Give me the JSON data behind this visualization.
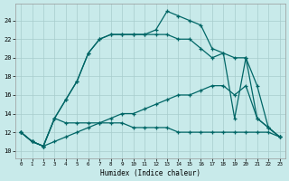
{
  "xlabel": "Humidex (Indice chaleur)",
  "bg_color": "#c8eaea",
  "grid_color": "#a8cccc",
  "line_color": "#006666",
  "xlim": [
    -0.5,
    23.5
  ],
  "ylim": [
    9.2,
    25.8
  ],
  "xticks": [
    0,
    1,
    2,
    3,
    4,
    5,
    6,
    7,
    8,
    9,
    10,
    11,
    12,
    13,
    14,
    15,
    16,
    17,
    18,
    19,
    20,
    21,
    22,
    23
  ],
  "yticks": [
    10,
    12,
    14,
    16,
    18,
    20,
    22,
    24
  ],
  "curve_top": {
    "x": [
      0,
      1,
      2,
      3,
      4,
      5,
      6,
      7,
      8,
      9,
      10,
      11,
      12,
      13,
      14,
      15,
      16,
      17,
      18,
      19,
      20,
      21,
      22,
      23
    ],
    "y": [
      12,
      11,
      10.5,
      13.5,
      15.5,
      17.5,
      20.5,
      22,
      22.5,
      22.5,
      22.5,
      22.5,
      23,
      25,
      24.5,
      24,
      23.5,
      21,
      20.5,
      20,
      20,
      13.5,
      12.5,
      11.5
    ]
  },
  "curve_second": {
    "x": [
      0,
      1,
      2,
      3,
      4,
      5,
      6,
      7,
      8,
      9,
      10,
      11,
      12,
      13,
      14,
      15,
      16,
      17,
      18,
      19,
      20,
      21,
      22,
      23
    ],
    "y": [
      12,
      11,
      10.5,
      13.5,
      15.5,
      17.5,
      20.5,
      22,
      22.5,
      22.5,
      22.5,
      22.5,
      22.5,
      22.5,
      22,
      22,
      21,
      20,
      20.5,
      13.5,
      20,
      17,
      12.5,
      11.5
    ]
  },
  "curve_diag": {
    "x": [
      0,
      1,
      2,
      3,
      4,
      5,
      6,
      7,
      8,
      9,
      10,
      11,
      12,
      13,
      14,
      15,
      16,
      17,
      18,
      19,
      20,
      21,
      22,
      23
    ],
    "y": [
      12,
      11,
      10.5,
      11,
      11.5,
      12,
      12.5,
      13,
      13.5,
      14,
      14,
      14.5,
      15,
      15.5,
      16,
      16,
      16.5,
      17,
      17,
      16,
      17,
      13.5,
      12.5,
      11.5
    ]
  },
  "curve_flat": {
    "x": [
      0,
      1,
      2,
      3,
      4,
      5,
      6,
      7,
      8,
      9,
      10,
      11,
      12,
      13,
      14,
      15,
      16,
      17,
      18,
      19,
      20,
      21,
      22,
      23
    ],
    "y": [
      12,
      11,
      10.5,
      13.5,
      13,
      13,
      13,
      13,
      13,
      13,
      12.5,
      12.5,
      12.5,
      12.5,
      12,
      12,
      12,
      12,
      12,
      12,
      12,
      12,
      12,
      11.5
    ]
  }
}
